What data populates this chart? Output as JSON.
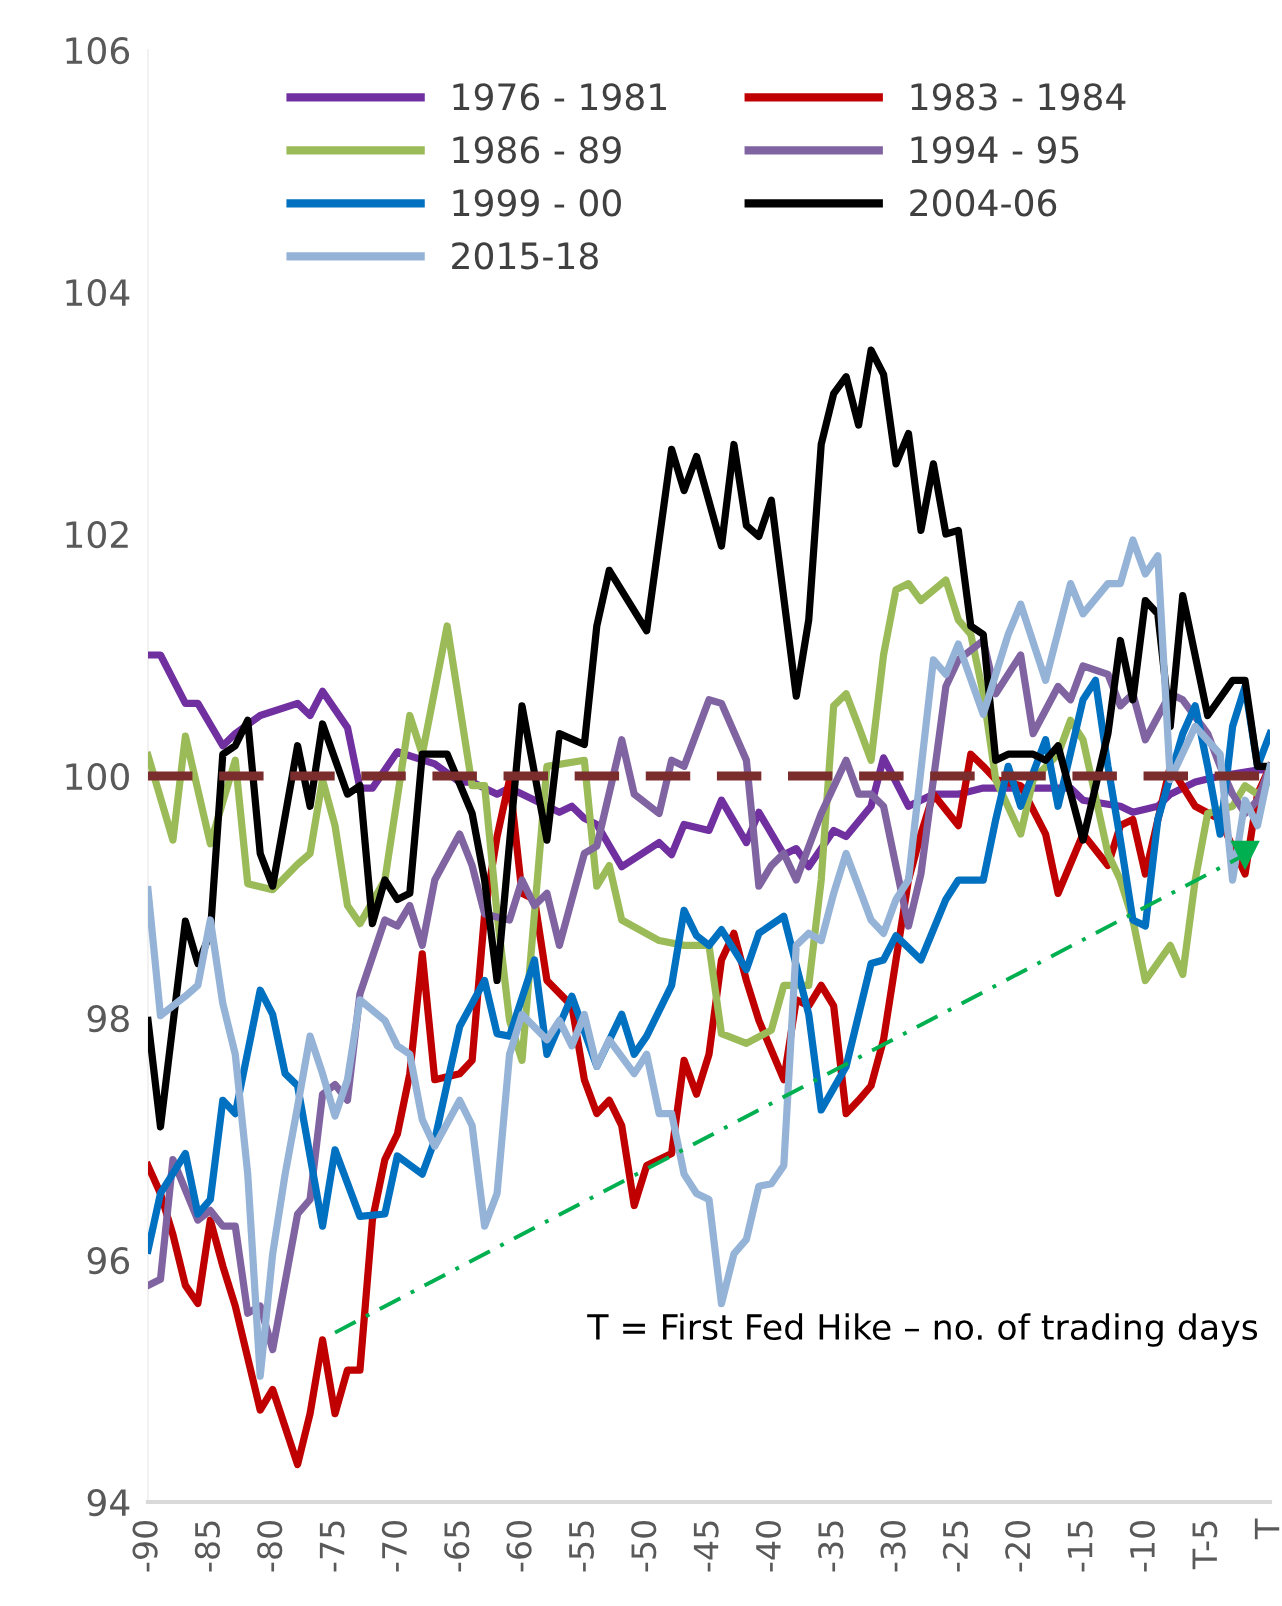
{
  "chart_data": {
    "type": "line",
    "annotations": [
      "T = First Fed Hike – no. of trading days"
    ],
    "xlim": [
      -90,
      0
    ],
    "ylim": [
      94,
      106
    ],
    "xticks": [
      -90,
      -85,
      -80,
      -75,
      -70,
      -65,
      -60,
      -55,
      -50,
      -45,
      -40,
      -35,
      -30,
      -25,
      -20,
      -15,
      -10,
      {
        "value": -5,
        "label": "T-5"
      },
      {
        "value": 0,
        "label": "T"
      }
    ],
    "yticks": [
      94,
      96,
      98,
      100,
      102,
      104,
      106
    ],
    "grid": false,
    "legend": "top",
    "marker": "none",
    "line_style": "solid",
    "ref_lines": [
      {
        "axis": "y",
        "value": 100,
        "label": null,
        "color": "#7b2c2c",
        "line_style": "dashed"
      }
    ],
    "series": [
      {
        "name": "1976 - 1981",
        "color": "#7030a0",
        "x": [
          -90,
          -89,
          -87,
          -86,
          -84,
          -83,
          -81,
          -78,
          -77,
          -76,
          -74,
          -73,
          -72,
          -70,
          -67,
          -65,
          -64,
          -62,
          -61,
          -57,
          -56,
          -55,
          -54,
          -52,
          -49,
          -48,
          -47,
          -45,
          -44,
          -42,
          -41,
          -39,
          -38,
          -37,
          -35,
          -34,
          -32,
          -31,
          -29,
          -27,
          -25,
          -23,
          -20,
          -16,
          -15,
          -12,
          -11,
          -9,
          -8,
          -6,
          -4,
          -1,
          0
        ],
        "values": [
          101.0,
          101.0,
          100.6,
          100.6,
          100.25,
          100.35,
          100.5,
          100.6,
          100.5,
          100.7,
          100.4,
          99.9,
          99.9,
          100.2,
          100.1,
          99.95,
          99.95,
          99.85,
          99.9,
          99.7,
          99.75,
          99.65,
          99.6,
          99.25,
          99.45,
          99.35,
          99.6,
          99.55,
          99.8,
          99.45,
          99.7,
          99.35,
          99.4,
          99.25,
          99.55,
          99.5,
          99.75,
          100.15,
          99.75,
          99.85,
          99.85,
          99.9,
          99.9,
          99.9,
          99.8,
          99.75,
          99.7,
          99.75,
          99.85,
          99.95,
          100.0,
          100.05,
          100.05
        ]
      },
      {
        "name": "1983 - 1984",
        "color": "#c00000",
        "x": [
          -90,
          -89,
          -88,
          -87,
          -86,
          -85,
          -84,
          -83,
          -81,
          -80,
          -78,
          -77,
          -76,
          -75,
          -74,
          -73,
          -72,
          -71,
          -70,
          -69,
          -68,
          -67,
          -65,
          -64,
          -63,
          -62,
          -61,
          -60,
          -59,
          -58,
          -56,
          -55,
          -54,
          -53,
          -52,
          -51,
          -50,
          -48,
          -47,
          -46,
          -45,
          -44,
          -43,
          -42,
          -41,
          -39,
          -38,
          -37,
          -36,
          -35,
          -34,
          -33,
          -32,
          -31,
          -30,
          -29,
          -28,
          -27,
          -25,
          -24,
          -23,
          -22,
          -20,
          -18,
          -17,
          -15,
          -13,
          -12,
          -11,
          -10,
          -8,
          -6,
          -4,
          -2,
          -1,
          0
        ],
        "values": [
          96.78,
          96.55,
          96.21,
          95.79,
          95.64,
          96.33,
          95.95,
          95.62,
          94.76,
          94.93,
          94.31,
          94.73,
          95.34,
          94.73,
          95.09,
          95.09,
          96.33,
          96.83,
          97.04,
          97.54,
          98.53,
          97.49,
          97.54,
          97.65,
          98.86,
          99.5,
          99.97,
          99.03,
          98.98,
          98.31,
          98.1,
          97.49,
          97.21,
          97.32,
          97.11,
          96.45,
          96.78,
          96.88,
          97.65,
          97.37,
          97.7,
          98.48,
          98.7,
          98.31,
          97.98,
          97.49,
          98.15,
          98.1,
          98.27,
          98.1,
          97.21,
          97.32,
          97.44,
          97.82,
          98.48,
          99.14,
          99.52,
          99.85,
          99.59,
          100.18,
          100.08,
          99.97,
          99.92,
          99.52,
          99.03,
          99.52,
          99.26,
          99.59,
          99.64,
          99.19,
          100.08,
          99.75,
          99.64,
          99.19,
          99.85,
          100.08
        ]
      },
      {
        "name": "1986 - 89",
        "color": "#9bbb59",
        "x": [
          -90,
          -88,
          -87,
          -85,
          -83,
          -82,
          -80,
          -78,
          -77,
          -76,
          -75,
          -74,
          -73,
          -71,
          -69,
          -68,
          -66,
          -64,
          -63,
          -62,
          -61,
          -60,
          -58,
          -55,
          -54,
          -53,
          -52,
          -49,
          -47,
          -45,
          -44,
          -42,
          -40,
          -39,
          -37,
          -36,
          -35,
          -34,
          -33,
          -32,
          -31,
          -30,
          -29,
          -28,
          -26,
          -25,
          -24,
          -23,
          -22,
          -20,
          -19,
          -17,
          -16,
          -15,
          -13,
          -12,
          -11,
          -10,
          -8,
          -7,
          -6,
          -5,
          -3,
          -2,
          -1,
          0
        ],
        "values": [
          100.17,
          99.47,
          100.33,
          99.44,
          100.13,
          99.11,
          99.06,
          99.27,
          99.36,
          99.97,
          99.59,
          98.93,
          98.78,
          99.14,
          100.5,
          100.18,
          101.24,
          99.92,
          99.92,
          98.86,
          97.98,
          97.65,
          100.08,
          100.13,
          99.09,
          99.26,
          98.81,
          98.64,
          98.6,
          98.6,
          97.87,
          97.79,
          97.9,
          98.27,
          98.27,
          99.14,
          100.58,
          100.68,
          100.41,
          100.13,
          101.0,
          101.54,
          101.59,
          101.45,
          101.62,
          101.29,
          101.17,
          100.68,
          99.97,
          99.52,
          99.97,
          100.18,
          100.46,
          100.3,
          99.36,
          99.14,
          98.81,
          98.31,
          98.6,
          98.36,
          99.14,
          99.69,
          99.75,
          99.92,
          99.85,
          99.97
        ]
      },
      {
        "name": "1994 - 95",
        "color": "#8064a2",
        "x": [
          -90,
          -89,
          -88,
          -86,
          -85,
          -84,
          -83,
          -82,
          -81,
          -80,
          -78,
          -77,
          -76,
          -75,
          -74,
          -73,
          -71,
          -70,
          -69,
          -68,
          -67,
          -65,
          -64,
          -63,
          -61,
          -60,
          -59,
          -58,
          -57,
          -55,
          -54,
          -52,
          -51,
          -49,
          -48,
          -47,
          -45,
          -44,
          -42,
          -41,
          -40,
          -39,
          -38,
          -36,
          -34,
          -33,
          -32,
          -31,
          -29,
          -28,
          -27,
          -26,
          -25,
          -23,
          -22,
          -20,
          -19,
          -17,
          -16,
          -15,
          -13,
          -12,
          -11,
          -10,
          -8,
          -7,
          -5,
          -4,
          -3,
          -2,
          -1,
          0
        ],
        "values": [
          95.79,
          95.84,
          96.83,
          96.33,
          96.41,
          96.28,
          96.28,
          95.56,
          95.62,
          95.26,
          96.38,
          96.5,
          97.37,
          97.45,
          97.32,
          98.2,
          98.81,
          98.76,
          98.93,
          98.6,
          99.14,
          99.52,
          99.26,
          98.86,
          98.81,
          99.14,
          98.93,
          99.03,
          98.6,
          99.36,
          99.42,
          100.3,
          99.85,
          99.69,
          100.13,
          100.08,
          100.63,
          100.6,
          100.13,
          99.09,
          99.26,
          99.36,
          99.14,
          99.69,
          100.13,
          99.85,
          99.85,
          99.75,
          98.76,
          99.19,
          99.97,
          100.74,
          100.96,
          101.12,
          100.68,
          101.0,
          100.35,
          100.74,
          100.63,
          100.91,
          100.84,
          100.58,
          100.68,
          100.3,
          100.68,
          100.63,
          100.35,
          100.08,
          99.85,
          99.69,
          99.8,
          100.08
        ]
      },
      {
        "name": "1999 - 00",
        "color": "#0070c0",
        "x": [
          -90,
          -89,
          -87,
          -86,
          -85,
          -84,
          -83,
          -81,
          -80,
          -79,
          -78,
          -76,
          -75,
          -73,
          -71,
          -70,
          -68,
          -67,
          -65,
          -63,
          -62,
          -61,
          -59,
          -58,
          -56,
          -54,
          -52,
          -51,
          -50,
          -48,
          -47,
          -46,
          -45,
          -44,
          -42,
          -41,
          -39,
          -37,
          -36,
          -34,
          -32,
          -31,
          -30,
          -28,
          -26,
          -25,
          -23,
          -22,
          -21,
          -20,
          -18,
          -17,
          -15,
          -14,
          -13,
          -12,
          -11,
          -10,
          -9,
          -7,
          -6,
          -5,
          -4,
          -3,
          -2,
          -1,
          0
        ],
        "values": [
          96.08,
          96.55,
          96.88,
          96.38,
          96.5,
          97.32,
          97.21,
          98.23,
          98.03,
          97.54,
          97.44,
          96.28,
          96.91,
          96.36,
          96.38,
          96.86,
          96.71,
          96.99,
          97.93,
          98.31,
          97.87,
          97.85,
          98.48,
          97.7,
          98.18,
          97.6,
          98.03,
          97.7,
          97.85,
          98.27,
          98.89,
          98.68,
          98.6,
          98.73,
          98.4,
          98.7,
          98.84,
          98.03,
          97.24,
          97.6,
          98.45,
          98.48,
          98.68,
          98.48,
          98.98,
          99.14,
          99.14,
          99.64,
          100.08,
          99.75,
          100.3,
          99.75,
          100.63,
          100.79,
          100.08,
          99.47,
          98.81,
          98.76,
          99.64,
          100.35,
          100.58,
          100.08,
          99.52,
          100.41,
          100.74,
          100.08,
          100.35
        ]
      },
      {
        "name": "2004-06",
        "color": "#000000",
        "x": [
          -90,
          -89,
          -87,
          -86,
          -85,
          -84,
          -83,
          -82,
          -81,
          -80,
          -78,
          -77,
          -76,
          -74,
          -73,
          -72,
          -71,
          -70,
          -69,
          -68,
          -66,
          -64,
          -63,
          -62,
          -60,
          -58,
          -57,
          -55,
          -54,
          -53,
          -50,
          -48,
          -47,
          -46,
          -44,
          -43,
          -42,
          -41,
          -40,
          -38,
          -37,
          -36,
          -35,
          -34,
          -33,
          -32,
          -31,
          -30,
          -29,
          -28,
          -27,
          -26,
          -25,
          -24,
          -23,
          -22,
          -21,
          -19,
          -18,
          -17,
          -15,
          -13,
          -12,
          -11,
          -10,
          -9,
          -8,
          -7,
          -5,
          -3,
          -2,
          -1,
          0
        ],
        "values": [
          97.98,
          97.1,
          98.8,
          98.45,
          98.7,
          100.18,
          100.25,
          100.46,
          99.36,
          99.09,
          100.25,
          99.75,
          100.43,
          99.85,
          99.92,
          98.78,
          99.14,
          98.98,
          99.03,
          100.18,
          100.18,
          99.69,
          99.14,
          98.31,
          100.58,
          99.47,
          100.35,
          100.26,
          101.24,
          101.7,
          101.2,
          102.7,
          102.36,
          102.64,
          101.9,
          102.74,
          102.07,
          101.98,
          102.28,
          100.66,
          101.29,
          102.74,
          103.16,
          103.3,
          102.9,
          103.52,
          103.32,
          102.58,
          102.83,
          102.03,
          102.58,
          102.0,
          102.03,
          101.24,
          101.17,
          100.13,
          100.18,
          100.18,
          100.13,
          100.25,
          99.47,
          100.35,
          101.12,
          100.63,
          101.45,
          101.34,
          100.41,
          101.49,
          100.5,
          100.79,
          100.79,
          100.08,
          100.08
        ]
      },
      {
        "name": "2015-18",
        "color": "#95b3d7",
        "x": [
          -90,
          -89,
          -87,
          -86,
          -85,
          -84,
          -83,
          -82,
          -81,
          -80,
          -79,
          -78,
          -77,
          -76,
          -75,
          -74,
          -73,
          -71,
          -70,
          -69,
          -68,
          -67,
          -65,
          -64,
          -63,
          -62,
          -61,
          -60,
          -58,
          -57,
          -56,
          -55,
          -54,
          -53,
          -51,
          -50,
          -49,
          -48,
          -47,
          -46,
          -45,
          -44,
          -43,
          -42,
          -41,
          -40,
          -39,
          -38,
          -37,
          -36,
          -35,
          -34,
          -32,
          -31,
          -30,
          -29,
          -27,
          -26,
          -25,
          -23,
          -21,
          -20,
          -18,
          -16,
          -15,
          -13,
          -12,
          -11,
          -10,
          -9,
          -8,
          -6,
          -4,
          -3,
          -2,
          -1,
          0
        ],
        "values": [
          99.06,
          98.02,
          98.18,
          98.27,
          98.81,
          98.12,
          97.7,
          96.71,
          95.04,
          96.05,
          96.71,
          97.27,
          97.85,
          97.54,
          97.19,
          97.49,
          98.15,
          97.98,
          97.77,
          97.7,
          97.16,
          96.94,
          97.32,
          97.11,
          96.28,
          96.55,
          97.7,
          98.03,
          97.82,
          97.98,
          97.77,
          98.03,
          97.6,
          97.82,
          97.54,
          97.7,
          97.21,
          97.21,
          96.71,
          96.55,
          96.5,
          95.64,
          96.05,
          96.17,
          96.61,
          96.63,
          96.78,
          98.6,
          98.7,
          98.64,
          99.03,
          99.36,
          98.81,
          98.7,
          98.98,
          99.14,
          100.96,
          100.84,
          101.09,
          100.51,
          101.17,
          101.42,
          100.79,
          101.59,
          101.34,
          101.59,
          101.59,
          101.95,
          101.67,
          101.82,
          99.97,
          100.41,
          100.18,
          99.14,
          99.8,
          99.59,
          100.08
        ]
      },
      {
        "type": "line",
        "color": "#00b050",
        "line_style": "dashdot",
        "marker": "triangle",
        "x": [
          -75,
          -2
        ],
        "values": [
          95.4,
          99.35
        ]
      }
    ]
  }
}
